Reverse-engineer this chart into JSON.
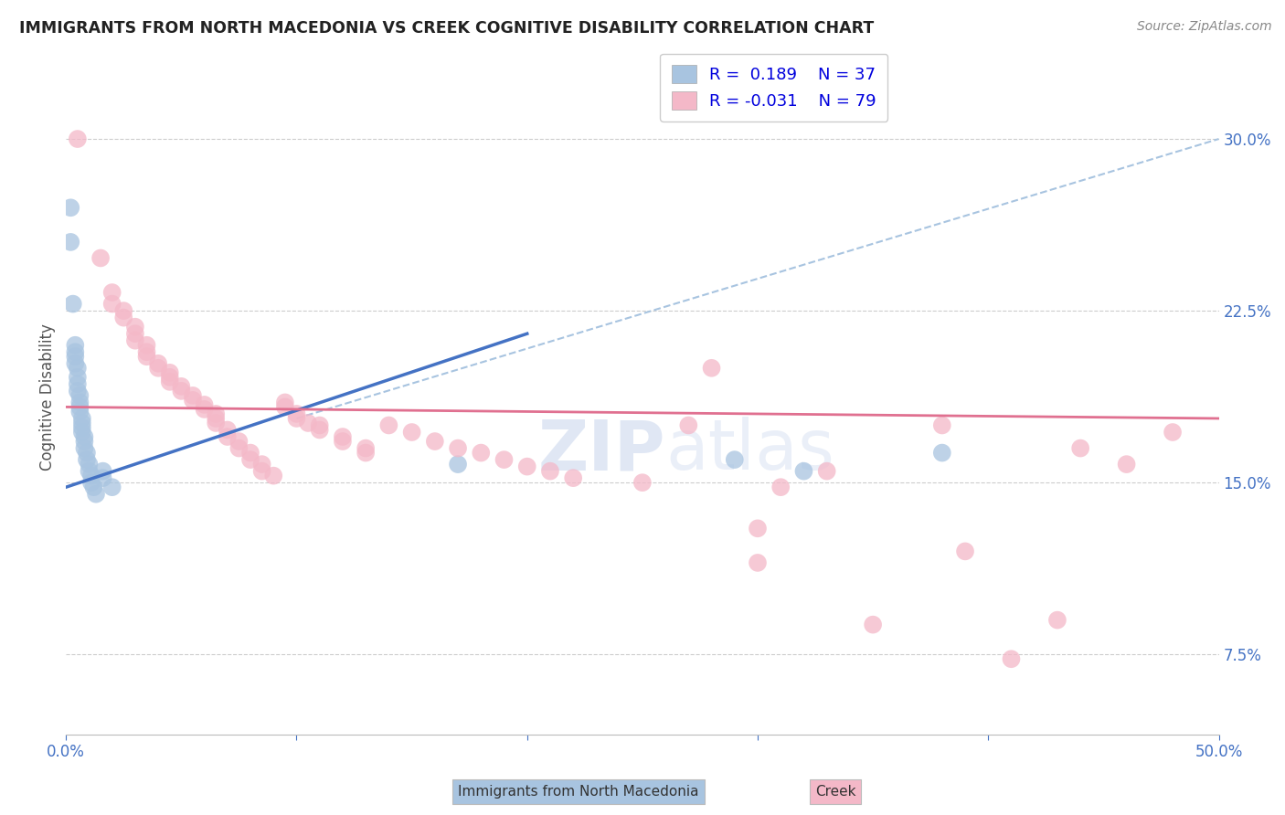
{
  "title": "IMMIGRANTS FROM NORTH MACEDONIA VS CREEK COGNITIVE DISABILITY CORRELATION CHART",
  "source": "Source: ZipAtlas.com",
  "ylabel": "Cognitive Disability",
  "right_ytick_vals": [
    0.075,
    0.15,
    0.225,
    0.3
  ],
  "right_ytick_labels": [
    "7.5%",
    "15.0%",
    "22.5%",
    "30.0%"
  ],
  "blue_color": "#a8c4e0",
  "pink_color": "#f4b8c8",
  "blue_line_color": "#4472c4",
  "pink_line_color": "#e07090",
  "dashed_line_color": "#a8c4e0",
  "watermark_color": "#ccd8ee",
  "xlim": [
    0.0,
    0.5
  ],
  "ylim": [
    0.04,
    0.335
  ],
  "figsize": [
    14.06,
    8.92
  ],
  "dpi": 100,
  "blue_scatter": [
    [
      0.002,
      0.27
    ],
    [
      0.002,
      0.255
    ],
    [
      0.003,
      0.228
    ],
    [
      0.004,
      0.21
    ],
    [
      0.004,
      0.207
    ],
    [
      0.004,
      0.205
    ],
    [
      0.004,
      0.202
    ],
    [
      0.005,
      0.2
    ],
    [
      0.005,
      0.196
    ],
    [
      0.005,
      0.193
    ],
    [
      0.005,
      0.19
    ],
    [
      0.006,
      0.188
    ],
    [
      0.006,
      0.185
    ],
    [
      0.006,
      0.183
    ],
    [
      0.006,
      0.181
    ],
    [
      0.007,
      0.178
    ],
    [
      0.007,
      0.176
    ],
    [
      0.007,
      0.174
    ],
    [
      0.007,
      0.172
    ],
    [
      0.008,
      0.17
    ],
    [
      0.008,
      0.168
    ],
    [
      0.008,
      0.165
    ],
    [
      0.009,
      0.163
    ],
    [
      0.009,
      0.16
    ],
    [
      0.01,
      0.158
    ],
    [
      0.01,
      0.155
    ],
    [
      0.011,
      0.153
    ],
    [
      0.011,
      0.15
    ],
    [
      0.012,
      0.148
    ],
    [
      0.013,
      0.145
    ],
    [
      0.016,
      0.155
    ],
    [
      0.016,
      0.152
    ],
    [
      0.02,
      0.148
    ],
    [
      0.17,
      0.158
    ],
    [
      0.29,
      0.16
    ],
    [
      0.32,
      0.155
    ],
    [
      0.38,
      0.163
    ]
  ],
  "pink_scatter": [
    [
      0.005,
      0.3
    ],
    [
      0.015,
      0.248
    ],
    [
      0.02,
      0.233
    ],
    [
      0.02,
      0.228
    ],
    [
      0.025,
      0.225
    ],
    [
      0.025,
      0.222
    ],
    [
      0.03,
      0.218
    ],
    [
      0.03,
      0.215
    ],
    [
      0.03,
      0.212
    ],
    [
      0.035,
      0.21
    ],
    [
      0.035,
      0.207
    ],
    [
      0.035,
      0.205
    ],
    [
      0.04,
      0.202
    ],
    [
      0.04,
      0.2
    ],
    [
      0.045,
      0.198
    ],
    [
      0.045,
      0.196
    ],
    [
      0.045,
      0.194
    ],
    [
      0.05,
      0.192
    ],
    [
      0.05,
      0.19
    ],
    [
      0.055,
      0.188
    ],
    [
      0.055,
      0.186
    ],
    [
      0.06,
      0.184
    ],
    [
      0.06,
      0.182
    ],
    [
      0.065,
      0.18
    ],
    [
      0.065,
      0.178
    ],
    [
      0.065,
      0.176
    ],
    [
      0.07,
      0.173
    ],
    [
      0.07,
      0.17
    ],
    [
      0.075,
      0.168
    ],
    [
      0.075,
      0.165
    ],
    [
      0.08,
      0.163
    ],
    [
      0.08,
      0.16
    ],
    [
      0.085,
      0.158
    ],
    [
      0.085,
      0.155
    ],
    [
      0.09,
      0.153
    ],
    [
      0.095,
      0.185
    ],
    [
      0.095,
      0.183
    ],
    [
      0.1,
      0.18
    ],
    [
      0.1,
      0.178
    ],
    [
      0.105,
      0.176
    ],
    [
      0.11,
      0.175
    ],
    [
      0.11,
      0.173
    ],
    [
      0.12,
      0.17
    ],
    [
      0.12,
      0.168
    ],
    [
      0.13,
      0.165
    ],
    [
      0.13,
      0.163
    ],
    [
      0.14,
      0.175
    ],
    [
      0.15,
      0.172
    ],
    [
      0.16,
      0.168
    ],
    [
      0.17,
      0.165
    ],
    [
      0.18,
      0.163
    ],
    [
      0.19,
      0.16
    ],
    [
      0.2,
      0.157
    ],
    [
      0.21,
      0.155
    ],
    [
      0.22,
      0.152
    ],
    [
      0.25,
      0.15
    ],
    [
      0.27,
      0.175
    ],
    [
      0.28,
      0.2
    ],
    [
      0.3,
      0.13
    ],
    [
      0.31,
      0.148
    ],
    [
      0.33,
      0.155
    ],
    [
      0.38,
      0.175
    ],
    [
      0.39,
      0.12
    ],
    [
      0.43,
      0.09
    ],
    [
      0.44,
      0.165
    ],
    [
      0.48,
      0.172
    ],
    [
      0.3,
      0.115
    ],
    [
      0.35,
      0.088
    ],
    [
      0.41,
      0.073
    ],
    [
      0.46,
      0.158
    ]
  ],
  "blue_line": [
    [
      0.0,
      0.148
    ],
    [
      0.2,
      0.215
    ]
  ],
  "pink_line": [
    [
      0.0,
      0.183
    ],
    [
      0.5,
      0.178
    ]
  ],
  "dashed_line": [
    [
      0.1,
      0.178
    ],
    [
      0.5,
      0.3
    ]
  ]
}
